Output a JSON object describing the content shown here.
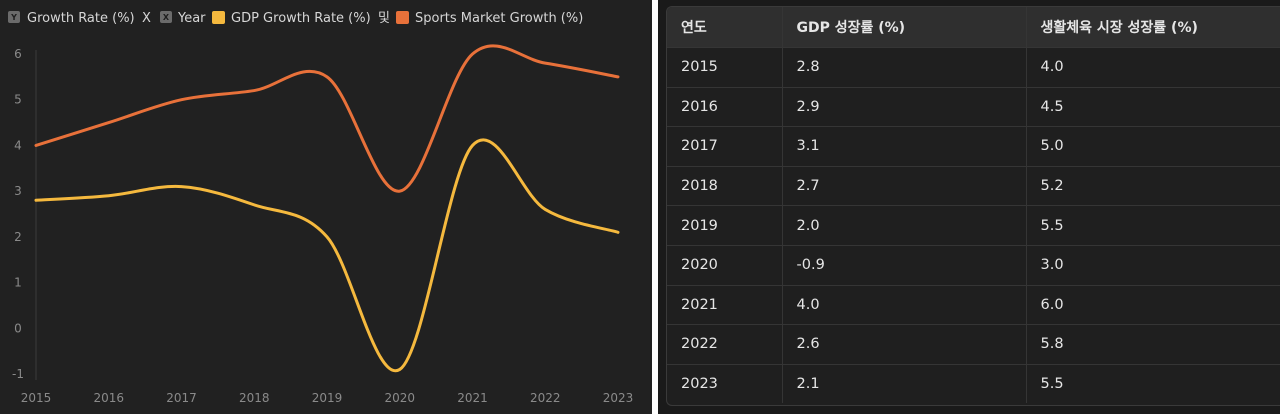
{
  "legend": {
    "y_badge": "Y",
    "y_label": "Growth Rate (%)",
    "x_separator": "X",
    "x_badge": "X",
    "x_label": "Year",
    "gdp_label": "GDP Growth Rate (%)",
    "and_text": "및",
    "sports_label": "Sports Market Growth (%)"
  },
  "colors": {
    "gdp": "#f5b93e",
    "sports": "#e8713a",
    "badge": "#6b6b6b",
    "grid": "#3a3a3a"
  },
  "chart_data": {
    "type": "line",
    "x": [
      "2015",
      "2016",
      "2017",
      "2018",
      "2019",
      "2020",
      "2021",
      "2022",
      "2023"
    ],
    "series": [
      {
        "name": "GDP Growth Rate (%)",
        "values": [
          2.8,
          2.9,
          3.1,
          2.7,
          2.0,
          -0.9,
          4.0,
          2.6,
          2.1
        ]
      },
      {
        "name": "Sports Market Growth (%)",
        "values": [
          4.0,
          4.5,
          5.0,
          5.2,
          5.5,
          3.0,
          6.0,
          5.8,
          5.5
        ]
      }
    ],
    "ylim": [
      -1,
      6
    ],
    "yticks": [
      "-1",
      "0",
      "1",
      "2",
      "3",
      "4",
      "5",
      "6"
    ],
    "xlabel": "Year",
    "ylabel": "Growth Rate (%)",
    "legend": "top-left"
  },
  "table": {
    "headers": [
      "연도",
      "GDP 성장률 (%)",
      "생활체육 시장 성장률 (%)"
    ],
    "rows": [
      [
        "2015",
        "2.8",
        "4.0"
      ],
      [
        "2016",
        "2.9",
        "4.5"
      ],
      [
        "2017",
        "3.1",
        "5.0"
      ],
      [
        "2018",
        "2.7",
        "5.2"
      ],
      [
        "2019",
        "2.0",
        "5.5"
      ],
      [
        "2020",
        "-0.9",
        "3.0"
      ],
      [
        "2021",
        "4.0",
        "6.0"
      ],
      [
        "2022",
        "2.6",
        "5.8"
      ],
      [
        "2023",
        "2.1",
        "5.5"
      ]
    ]
  }
}
